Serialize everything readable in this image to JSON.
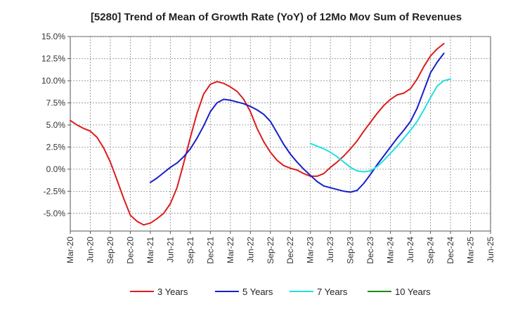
{
  "chart_data": {
    "type": "line",
    "title": "[5280]  Trend of Mean of Growth Rate (YoY) of 12Mo Mov Sum of Revenues",
    "xlabel": "",
    "ylabel": "",
    "ylim": [
      -7.0,
      15.0
    ],
    "y_ticks": [
      15.0,
      12.5,
      10.0,
      7.5,
      5.0,
      2.5,
      0.0,
      -2.5,
      -5.0
    ],
    "y_tick_labels": [
      "15.0%",
      "12.5%",
      "10.0%",
      "7.5%",
      "5.0%",
      "2.5%",
      "0.0%",
      "-2.5%",
      "-5.0%"
    ],
    "x_tick_labels": [
      "Mar-20",
      "Jun-20",
      "Sep-20",
      "Dec-20",
      "Mar-21",
      "Jun-21",
      "Sep-21",
      "Dec-21",
      "Mar-22",
      "Jun-22",
      "Sep-22",
      "Dec-22",
      "Mar-23",
      "Jun-23",
      "Sep-23",
      "Dec-23",
      "Mar-24",
      "Jun-24",
      "Sep-24",
      "Dec-24",
      "Mar-25",
      "Jun-25"
    ],
    "x_start": "2020-03",
    "grid": true,
    "legend_position": "bottom",
    "series": [
      {
        "name": "3 Years",
        "color": "#dd1c1c",
        "start_index": 0,
        "values": [
          5.5,
          5.0,
          4.6,
          4.3,
          3.6,
          2.4,
          0.8,
          -1.2,
          -3.3,
          -5.2,
          -5.9,
          -6.3,
          -6.1,
          -5.6,
          -5.0,
          -3.9,
          -2.1,
          0.7,
          3.6,
          6.3,
          8.5,
          9.6,
          9.9,
          9.7,
          9.3,
          8.8,
          7.9,
          6.5,
          4.6,
          3.1,
          1.9,
          1.0,
          0.4,
          0.1,
          -0.1,
          -0.5,
          -0.8,
          -0.8,
          -0.5,
          0.2,
          0.8,
          1.5,
          2.3,
          3.2,
          4.3,
          5.3,
          6.3,
          7.2,
          7.9,
          8.4,
          8.6,
          9.1,
          10.2,
          11.6,
          12.8,
          13.6,
          14.2
        ]
      },
      {
        "name": "5 Years",
        "color": "#1520c8",
        "start_index": 12,
        "values": [
          -1.5,
          -1.0,
          -0.4,
          0.2,
          0.7,
          1.4,
          2.3,
          3.5,
          4.9,
          6.5,
          7.5,
          7.9,
          7.8,
          7.6,
          7.4,
          7.1,
          6.7,
          6.2,
          5.4,
          4.1,
          2.8,
          1.7,
          0.8,
          0.0,
          -0.7,
          -1.4,
          -1.9,
          -2.1,
          -2.3,
          -2.5,
          -2.6,
          -2.4,
          -1.6,
          -0.6,
          0.5,
          1.5,
          2.5,
          3.5,
          4.4,
          5.4,
          6.9,
          8.9,
          10.9,
          12.1,
          13.1
        ]
      },
      {
        "name": "7 Years",
        "color": "#20e0e0",
        "start_index": 36,
        "values": [
          2.9,
          2.6,
          2.3,
          1.9,
          1.4,
          0.8,
          0.2,
          -0.2,
          -0.3,
          -0.2,
          0.3,
          1.0,
          1.8,
          2.6,
          3.5,
          4.4,
          5.4,
          6.7,
          8.1,
          9.4,
          10.0,
          10.2
        ]
      },
      {
        "name": "10 Years",
        "color": "#1a8a1a",
        "start_index": 0,
        "values": []
      }
    ]
  }
}
